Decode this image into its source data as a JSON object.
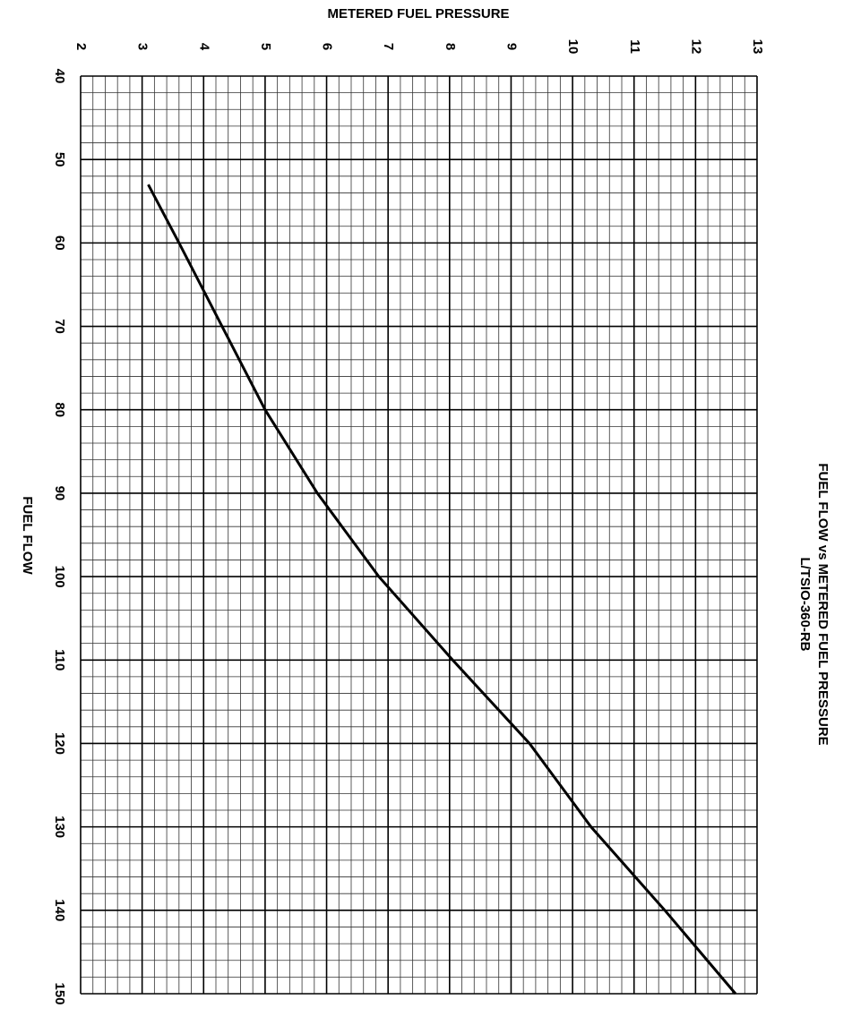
{
  "chart_data": {
    "type": "line",
    "title": "FUEL FLOW vs METERED FUEL PRESSURE",
    "subtitle": "L/TSIO-360-RB",
    "x_label": "FUEL FLOW",
    "y_label": "METERED FUEL PRESSURE",
    "x": [
      53,
      60,
      70,
      80,
      90,
      100,
      110,
      120,
      130,
      140,
      150
    ],
    "values": [
      3.1,
      3.6,
      4.3,
      5.0,
      5.85,
      6.85,
      8.05,
      9.3,
      10.3,
      11.5,
      12.65
    ],
    "color": "#000000",
    "xlim": [
      40,
      150
    ],
    "xticks": [
      40,
      50,
      60,
      70,
      80,
      90,
      100,
      110,
      120,
      130,
      140,
      150
    ],
    "ylim": [
      2,
      13
    ],
    "yticks": [
      2,
      3,
      4,
      5,
      6,
      7,
      8,
      9,
      10,
      11,
      12,
      13
    ],
    "grid": true
  }
}
